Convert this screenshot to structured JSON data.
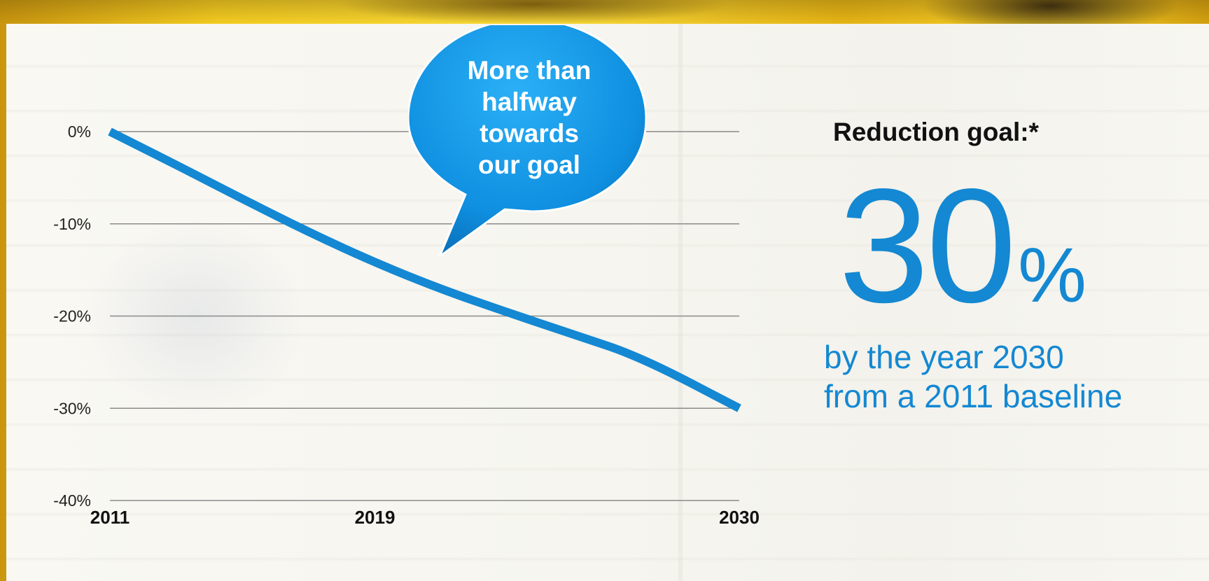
{
  "chart_data": {
    "type": "line",
    "x": [
      2011,
      2019,
      2030
    ],
    "y_ticks": [
      "0%",
      "-10%",
      "-20%",
      "-30%",
      "-40%"
    ],
    "x_ticks": [
      "2011",
      "2019",
      "2030"
    ],
    "series": [
      {
        "x": [
          2011,
          2013,
          2015,
          2017,
          2019,
          2021,
          2023,
          2025,
          2027,
          2030
        ],
        "values": [
          0,
          -3.6,
          -7.3,
          -10.9,
          -14.2,
          -17.1,
          -19.6,
          -22.0,
          -24.4,
          -30.0
        ]
      }
    ],
    "ylim": [
      -40,
      0
    ],
    "xlim": [
      2011,
      2030
    ],
    "grid": true,
    "line_color": "#1488d2",
    "title": "",
    "xlabel": "",
    "ylabel": ""
  },
  "callout": {
    "lines": [
      "More than",
      "halfway",
      "towards",
      "our goal"
    ],
    "color": "#0f8fe0"
  },
  "goal": {
    "label": "Reduction goal:*",
    "number": "30",
    "unit": "%",
    "line1": "by the year 2030",
    "line2": "from a 2011 baseline",
    "color": "#1488d2"
  }
}
